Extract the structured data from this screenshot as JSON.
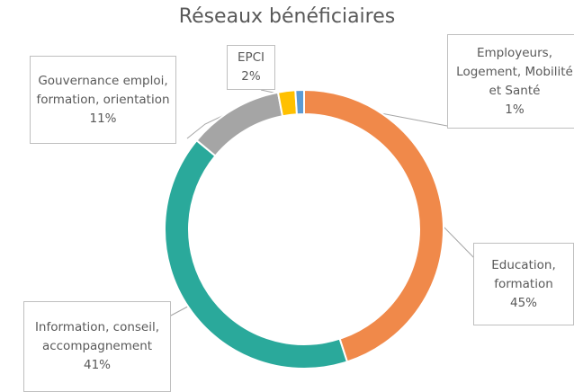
{
  "chart_data": {
    "type": "donut",
    "title": "Réseaux bénéficiaires",
    "categories": [
      "Education, formation",
      "Information, conseil, accompagnement",
      "Gouvernance emploi, formation, orientation",
      "EPCI",
      "Employeurs, Logement, Mobilité et Santé"
    ],
    "values": [
      45,
      41,
      11,
      2,
      1
    ],
    "value_labels": [
      "45%",
      "41%",
      "11%",
      "2%",
      "1%"
    ],
    "colors": [
      "#f0894a",
      "#2aa99b",
      "#a5a5a5",
      "#ffc000",
      "#5b9bd5"
    ]
  }
}
